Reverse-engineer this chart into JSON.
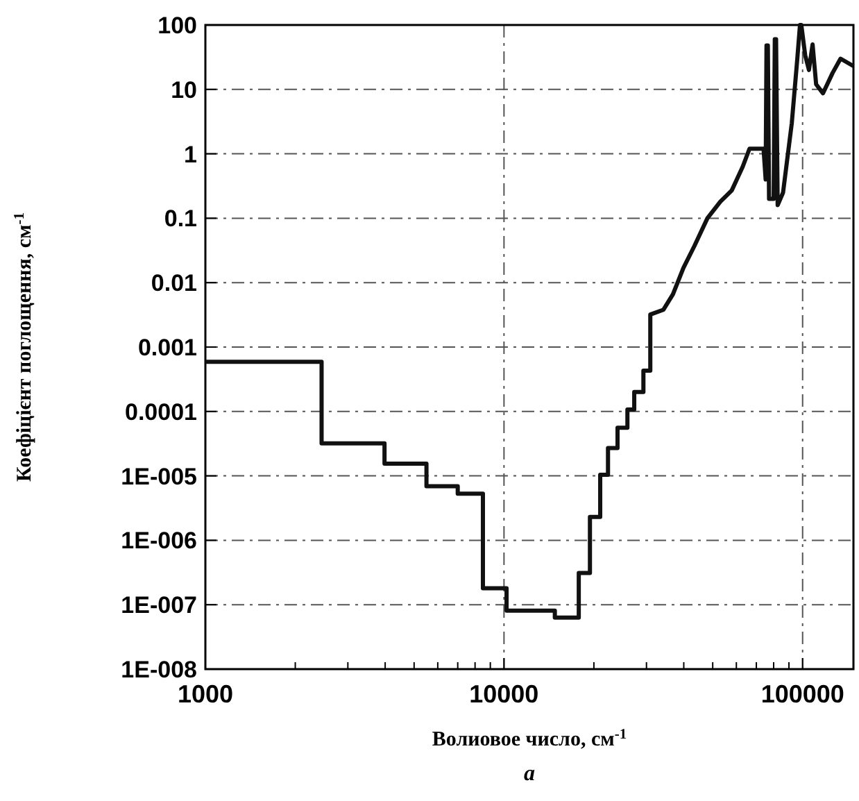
{
  "chart_data": {
    "type": "line",
    "xlabel": "Волиовое число, см$^{-1}$",
    "ylabel": "Коефіцієнт поглощення, см$^{-1}$",
    "annotations": [
      "a"
    ],
    "log": "xy",
    "grid": true,
    "xlim": [
      1000,
      148000
    ],
    "ylim": [
      1e-08,
      100
    ],
    "xticks": [
      1000,
      {
        "value": 2000,
        "label": null
      },
      {
        "value": 3000,
        "label": null
      },
      {
        "value": 4000,
        "label": null
      },
      {
        "value": 5000,
        "label": null
      },
      {
        "value": 6000,
        "label": null
      },
      {
        "value": 7000,
        "label": null
      },
      {
        "value": 8000,
        "label": null
      },
      {
        "value": 9000,
        "label": null
      },
      10000,
      {
        "value": 20000,
        "label": null
      },
      {
        "value": 30000,
        "label": null
      },
      {
        "value": 40000,
        "label": null
      },
      {
        "value": 50000,
        "label": null
      },
      {
        "value": 60000,
        "label": null
      },
      {
        "value": 70000,
        "label": null
      },
      {
        "value": 80000,
        "label": null
      },
      {
        "value": 90000,
        "label": null
      },
      100000
    ],
    "yticks": [
      {
        "value": 1e-08,
        "label": "1E-008"
      },
      {
        "value": 1e-07,
        "label": "1E-007"
      },
      {
        "value": 1e-06,
        "label": "1E-006"
      },
      {
        "value": 1e-05,
        "label": "1E-005"
      },
      0.0001,
      0.001,
      0.01,
      0.1,
      1,
      10,
      100
    ],
    "series": [
      {
        "color": "#111111",
        "x": [
          1000,
          2450,
          2450,
          3980,
          3980,
          5500,
          5500,
          7000,
          7000,
          8500,
          8500,
          10200,
          10200,
          14800,
          14800,
          17800,
          17800,
          19400,
          19400,
          21000,
          21000,
          22300,
          22300,
          24000,
          24000,
          25900,
          25900,
          27300,
          27300,
          29300,
          29300,
          30900,
          30900,
          34200,
          36800,
          39900,
          43400,
          48000,
          53000,
          57900,
          63000,
          66400,
          74000,
          75200,
          75700,
          76500,
          77200,
          80000,
          80700,
          81500,
          82500,
          86000,
          92000,
          96000,
          98000,
          99000,
          102000,
          105000,
          108000,
          111000,
          117000,
          126000,
          134000,
          148000
        ],
        "values": [
          0.00059,
          0.00059,
          3.2e-05,
          3.2e-05,
          1.55e-05,
          1.55e-05,
          6.9e-06,
          6.9e-06,
          5.3e-06,
          5.3e-06,
          1.8e-07,
          1.8e-07,
          8.1e-08,
          8.1e-08,
          6.3e-08,
          6.3e-08,
          3.1e-07,
          3.1e-07,
          2.3e-06,
          2.3e-06,
          1.04e-05,
          1.04e-05,
          2.7e-05,
          2.7e-05,
          5.6e-05,
          5.6e-05,
          0.000107,
          0.000107,
          0.0002,
          0.0002,
          0.00043,
          0.00043,
          0.0032,
          0.0038,
          0.0066,
          0.017,
          0.037,
          0.1,
          0.18,
          0.27,
          0.63,
          1.2,
          1.2,
          0.4,
          48,
          48,
          0.2,
          0.2,
          60,
          60,
          0.16,
          0.25,
          3,
          30,
          100,
          100,
          34,
          20,
          50,
          12,
          8.7,
          18,
          30,
          23
        ]
      }
    ]
  }
}
